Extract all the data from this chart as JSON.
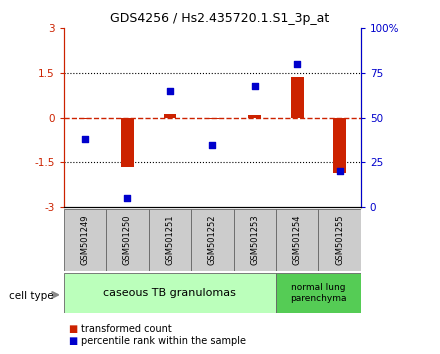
{
  "title": "GDS4256 / Hs2.435720.1.S1_3p_at",
  "samples": [
    "GSM501249",
    "GSM501250",
    "GSM501251",
    "GSM501252",
    "GSM501253",
    "GSM501254",
    "GSM501255"
  ],
  "transformed_counts": [
    -0.05,
    -1.65,
    0.12,
    -0.05,
    0.08,
    1.35,
    -1.85
  ],
  "percentile_ranks": [
    38,
    5,
    65,
    35,
    68,
    80,
    20
  ],
  "ylim_left": [
    -3,
    3
  ],
  "ylim_right": [
    0,
    100
  ],
  "yticks_left": [
    -3,
    -1.5,
    0,
    1.5,
    3
  ],
  "yticks_right": [
    0,
    25,
    50,
    75,
    100
  ],
  "ytick_labels_left": [
    "-3",
    "-1.5",
    "0",
    "1.5",
    "3"
  ],
  "ytick_labels_right": [
    "0",
    "25",
    "50",
    "75",
    "100%"
  ],
  "hlines_dotted": [
    -1.5,
    1.5
  ],
  "hline_dashed": 0,
  "bar_color": "#cc2200",
  "point_color": "#0000cc",
  "groups": [
    {
      "label": "caseous TB granulomas",
      "samples_range": [
        0,
        4
      ],
      "color": "#bbffbb"
    },
    {
      "label": "normal lung\nparenchyma",
      "samples_range": [
        5,
        6
      ],
      "color": "#55cc55"
    }
  ],
  "cell_type_label": "cell type",
  "legend_bar_label": "transformed count",
  "legend_point_label": "percentile rank within the sample",
  "bar_color_left": "#cc2200",
  "point_color_right": "#0000cc",
  "bg_color": "#ffffff",
  "sample_box_color": "#cccccc"
}
